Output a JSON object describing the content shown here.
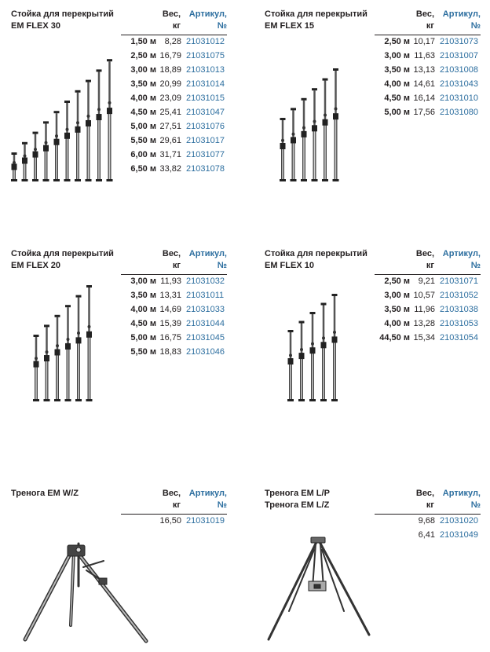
{
  "headers": {
    "weight": [
      "Вес,",
      "кг"
    ],
    "article": [
      "Артикул,",
      "№"
    ]
  },
  "blocks": [
    {
      "title": [
        "Стойка для перекрытий",
        "EM FLEX 30"
      ],
      "rows": [
        {
          "len": "1,50 м",
          "wt": "8,28",
          "art": "21031012"
        },
        {
          "len": "2,50 м",
          "wt": "16,79",
          "art": "21031075"
        },
        {
          "len": "3,00 м",
          "wt": "18,89",
          "art": "21031013"
        },
        {
          "len": "3,50 м",
          "wt": "20,99",
          "art": "21031014"
        },
        {
          "len": "4,00 м",
          "wt": "23,09",
          "art": "21031015"
        },
        {
          "len": "4,50 м",
          "wt": "25,41",
          "art": "21031047"
        },
        {
          "len": "5,00 м",
          "wt": "27,51",
          "art": "21031076"
        },
        {
          "len": "5,50 м",
          "wt": "29,61",
          "art": "21031017"
        },
        {
          "len": "6,00 м",
          "wt": "31,71",
          "art": "21031077"
        },
        {
          "len": "6,50 м",
          "wt": "33,82",
          "art": "21031078"
        }
      ]
    },
    {
      "title": [
        "Стойка для перекрытий",
        "EM FLEX 15"
      ],
      "rows": [
        {
          "len": "2,50 м",
          "wt": "10,17",
          "art": "21031073"
        },
        {
          "len": "3,00 м",
          "wt": "11,63",
          "art": "21031007"
        },
        {
          "len": "3,50 м",
          "wt": "13,13",
          "art": "21031008"
        },
        {
          "len": "4,00 м",
          "wt": "14,61",
          "art": "21031043"
        },
        {
          "len": "4,50 м",
          "wt": "16,14",
          "art": "21031010"
        },
        {
          "len": "5,00 м",
          "wt": "17,56",
          "art": "21031080"
        }
      ]
    },
    {
      "title": [
        "Стойка для перекрытий",
        "EM FLEX 20"
      ],
      "rows": [
        {
          "len": "3,00 м",
          "wt": "11,93",
          "art": "21031032"
        },
        {
          "len": "3,50 м",
          "wt": "13,31",
          "art": "21031011"
        },
        {
          "len": "4,00 м",
          "wt": "14,69",
          "art": "21031033"
        },
        {
          "len": "4,50 м",
          "wt": "15,39",
          "art": "21031044"
        },
        {
          "len": "5,00 м",
          "wt": "16,75",
          "art": "21031045"
        },
        {
          "len": "5,50 м",
          "wt": "18,83",
          "art": "21031046"
        }
      ]
    },
    {
      "title": [
        "Стойка для перекрытий",
        "EM FLEX 10"
      ],
      "rows": [
        {
          "len": "2,50 м",
          "wt": "9,21",
          "art": "21031071"
        },
        {
          "len": "3,00 м",
          "wt": "10,57",
          "art": "21031052"
        },
        {
          "len": "3,50 м",
          "wt": "11,96",
          "art": "21031038"
        },
        {
          "len": "4,00 м",
          "wt": "13,28",
          "art": "21031053"
        },
        {
          "len": "44,50 м",
          "wt": "15,34",
          "art": "21031054"
        }
      ]
    },
    {
      "title": [
        "Тренога EM W/Z"
      ],
      "rows": [
        {
          "len": "",
          "wt": "16,50",
          "art": "21031019"
        }
      ]
    },
    {
      "title": [
        "Тренога EM L/P",
        "Тренога EM L/Z"
      ],
      "rows": [
        {
          "len": "",
          "wt": "9,68",
          "art": "21031020"
        },
        {
          "len": "",
          "wt": "6,41",
          "art": "21031049"
        }
      ]
    }
  ]
}
